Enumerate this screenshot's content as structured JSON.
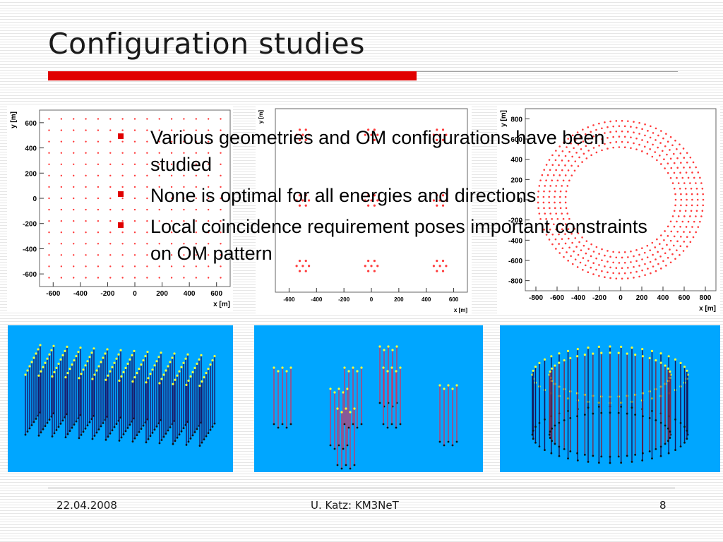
{
  "slide": {
    "title": "Configuration studies",
    "bullets": [
      "Various geometries and OM configurations have been studied",
      "None is optimal for all energies and directions",
      "Local coincidence requirement poses important constraints on OM pattern"
    ]
  },
  "footer": {
    "date": "22.04.2008",
    "author": "U. Katz: KM3NeT",
    "page": "8"
  },
  "colors": {
    "title_accent": "#e00000",
    "bullet": "#e00000",
    "marker": "#ff3b3b",
    "render_background": "#00a6ff"
  },
  "chart_data": [
    {
      "type": "scatter",
      "subject": "homogeneous grid layout",
      "xlabel": "x [m]",
      "ylabel": "y [m]",
      "xlim": [
        -700,
        700
      ],
      "ylim": [
        -700,
        700
      ],
      "xticks": [
        -600,
        -400,
        -200,
        0,
        200,
        400,
        600
      ],
      "yticks": [
        -600,
        -400,
        -200,
        0,
        200,
        400,
        600
      ],
      "tick_labels_x": [
        "-600",
        "-400",
        "-200",
        "0",
        "200",
        "400",
        "600"
      ],
      "tick_labels_y": [
        "-600",
        "-400",
        "-200",
        "0",
        "200",
        "400",
        "600"
      ],
      "grid": {
        "nx": 15,
        "ny": 15,
        "start": -630,
        "step": 90
      }
    },
    {
      "type": "scatter",
      "subject": "clustered layout",
      "xlabel": "x [m]",
      "ylabel": "y [m]",
      "xlim": [
        -700,
        700
      ],
      "ylim": [
        -700,
        700
      ],
      "xticks": [
        -600,
        -400,
        -200,
        0,
        200,
        400,
        600
      ],
      "tick_labels_x": [
        "-600",
        "-400",
        "-200",
        "0",
        "200",
        "400",
        "600"
      ],
      "clusters": [
        {
          "x": -500,
          "y": 500
        },
        {
          "x": 0,
          "y": 500
        },
        {
          "x": 500,
          "y": 500
        },
        {
          "x": -500,
          "y": 0
        },
        {
          "x": 0,
          "y": 0
        },
        {
          "x": 500,
          "y": 0
        },
        {
          "x": -500,
          "y": -500
        },
        {
          "x": 0,
          "y": -500
        },
        {
          "x": 500,
          "y": -500
        }
      ],
      "cluster_radius": 45
    },
    {
      "type": "scatter",
      "subject": "ring layout",
      "xlabel": "x [m]",
      "ylabel": "y [m]",
      "xlim": [
        -900,
        900
      ],
      "ylim": [
        -900,
        900
      ],
      "xticks": [
        -800,
        -600,
        -400,
        -200,
        0,
        200,
        400,
        600,
        800
      ],
      "yticks": [
        -800,
        -600,
        -400,
        -200,
        0,
        200,
        400,
        600,
        800
      ],
      "tick_labels_x": [
        "-800",
        "-600",
        "-400",
        "-200",
        "0",
        "200",
        "400",
        "600",
        "800"
      ],
      "tick_labels_y": [
        "-800",
        "-600",
        "-400",
        "-200",
        "0",
        "200",
        "400",
        "600",
        "800"
      ],
      "rings": {
        "r_inner": 520,
        "r_outer": 780,
        "count": 6
      }
    }
  ]
}
